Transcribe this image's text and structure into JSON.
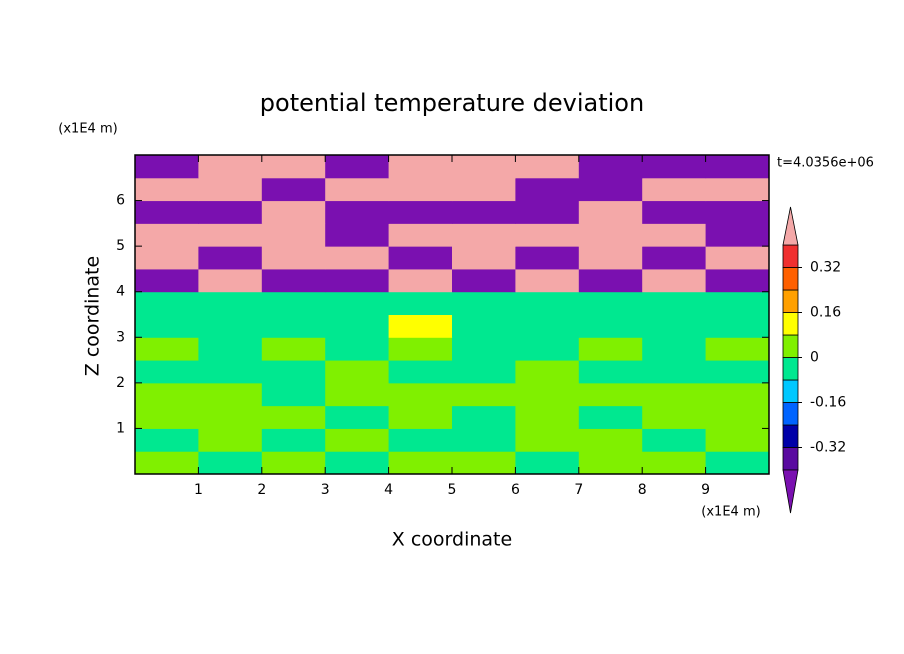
{
  "chart_data": {
    "type": "contour",
    "title": "potential temperature deviation",
    "x_label": "X coordinate",
    "y_label": "Z coordinate",
    "x_unit": "(x1E4 m)",
    "y_unit": "(x1E4 m)",
    "time_label": "t=4.0356e+06",
    "xlim": [
      0,
      10
    ],
    "ylim": [
      0,
      7
    ],
    "xticks": [
      1,
      2,
      3,
      4,
      5,
      6,
      7,
      8,
      9
    ],
    "yticks": [
      1,
      2,
      3,
      4,
      5,
      6
    ],
    "x": [
      0.5,
      1.5,
      2.5,
      3.5,
      4.5,
      5.5,
      6.5,
      7.5,
      8.5,
      9.5
    ],
    "y": [
      0.25,
      0.75,
      1.25,
      1.75,
      2.25,
      2.75,
      3.25,
      3.75,
      4.25,
      4.75,
      5.25,
      5.75,
      6.25,
      6.75
    ],
    "z": [
      [
        0.04,
        -0.04,
        0.04,
        -0.04,
        0.04,
        0.04,
        -0.04,
        0.04,
        0.04,
        -0.04
      ],
      [
        -0.04,
        0.04,
        -0.04,
        0.04,
        -0.04,
        -0.04,
        0.04,
        0.04,
        -0.04,
        0.04
      ],
      [
        0.04,
        0.04,
        0.04,
        -0.04,
        0.04,
        -0.04,
        0.04,
        -0.04,
        0.04,
        0.04
      ],
      [
        0.04,
        0.04,
        -0.04,
        0.04,
        0.04,
        0.04,
        0.04,
        0.04,
        0.04,
        0.04
      ],
      [
        -0.04,
        -0.04,
        -0.04,
        0.04,
        -0.04,
        -0.04,
        0.04,
        -0.04,
        -0.04,
        -0.04
      ],
      [
        0.04,
        -0.04,
        0.04,
        -0.04,
        0.04,
        -0.04,
        -0.04,
        0.04,
        -0.04,
        0.04
      ],
      [
        -0.04,
        -0.04,
        -0.04,
        -0.04,
        0.12,
        -0.04,
        -0.04,
        -0.04,
        -0.04,
        -0.04
      ],
      [
        -0.04,
        -0.04,
        -0.04,
        -0.04,
        -0.04,
        -0.04,
        -0.04,
        -0.04,
        -0.04,
        -0.04
      ],
      [
        -0.5,
        0.5,
        -0.5,
        -0.5,
        0.5,
        -0.5,
        0.5,
        -0.5,
        0.5,
        -0.5
      ],
      [
        0.5,
        -0.5,
        0.5,
        0.5,
        -0.5,
        0.5,
        -0.5,
        0.5,
        -0.5,
        0.5
      ],
      [
        0.5,
        0.5,
        0.5,
        -0.5,
        0.5,
        0.5,
        0.5,
        0.5,
        0.5,
        -0.5
      ],
      [
        -0.5,
        -0.5,
        0.5,
        -0.5,
        -0.5,
        -0.5,
        -0.5,
        0.5,
        -0.5,
        -0.5
      ],
      [
        0.5,
        0.5,
        -0.5,
        0.5,
        0.5,
        0.5,
        -0.5,
        -0.5,
        0.5,
        0.5
      ],
      [
        -0.5,
        0.5,
        0.5,
        -0.5,
        0.5,
        0.5,
        0.5,
        -0.5,
        -0.5,
        -0.5
      ]
    ],
    "levels": [
      -0.4,
      -0.32,
      -0.24,
      -0.16,
      -0.08,
      0,
      0.08,
      0.16,
      0.24,
      0.32,
      0.4
    ],
    "colors": [
      "#7a10b0",
      "#5a0aa0",
      "#0000a8",
      "#0064ff",
      "#00c8ff",
      "#00e890",
      "#80f000",
      "#ffff00",
      "#ffa000",
      "#ff6000",
      "#f03030",
      "#f4a8a8"
    ],
    "cticks": [
      -0.32,
      -0.16,
      0,
      0.16,
      0.32
    ]
  }
}
